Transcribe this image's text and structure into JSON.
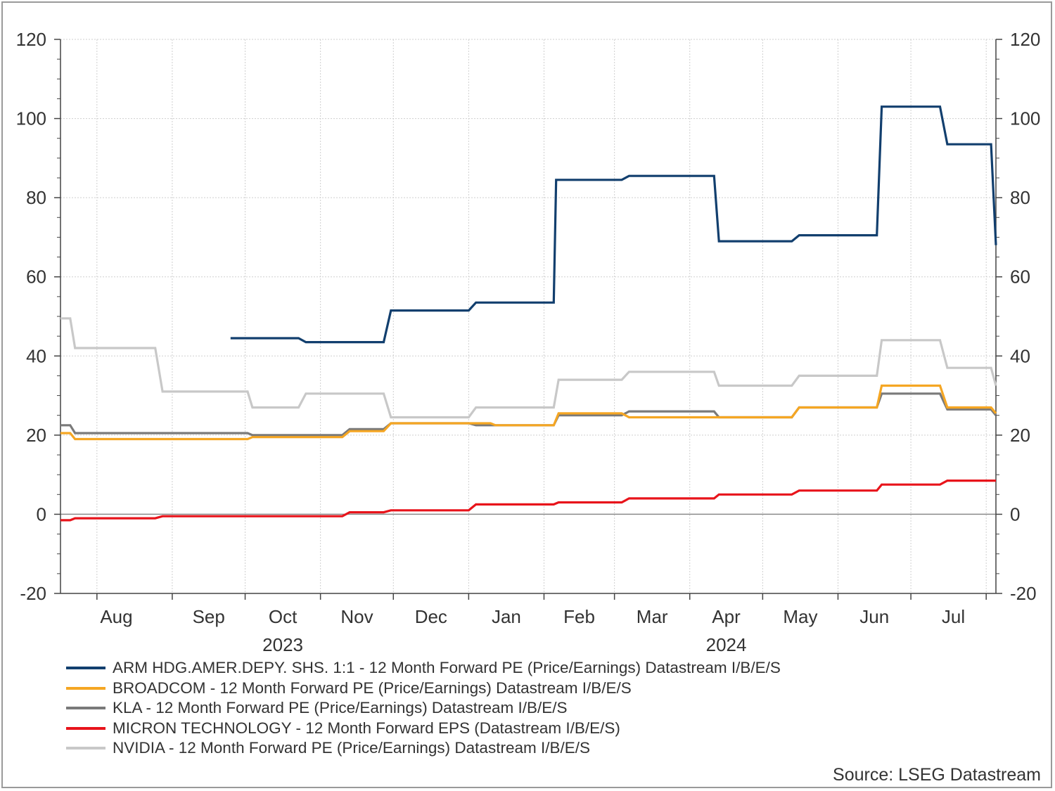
{
  "chart_data": {
    "type": "line",
    "y_axis": {
      "min": -20,
      "max": 120,
      "ticks": [
        -20,
        0,
        20,
        40,
        60,
        80,
        100,
        120
      ],
      "left_and_right": true
    },
    "x_axis": {
      "month_labels": [
        "Aug",
        "Sep",
        "Oct",
        "Nov",
        "Dec",
        "Jan",
        "Feb",
        "Mar",
        "Apr",
        "May",
        "Jun",
        "Jul"
      ],
      "year_labels": [
        {
          "label": "2023",
          "month": "Oct"
        },
        {
          "label": "2024",
          "month": "Apr"
        }
      ],
      "range": [
        "2023-07-17",
        "2024-08-05"
      ]
    },
    "grid": true,
    "legend_position": "bottom",
    "series": [
      {
        "name": "ARM HDG.AMER.DEPY. SHS. 1:1 - 12 Month Forward PE (Price/Earnings) Datastream I/B/E/S",
        "color": "#123f6e",
        "points": [
          [
            "2023-09-25",
            44.5
          ],
          [
            "2023-10-23",
            44.5
          ],
          [
            "2023-10-26",
            43.5
          ],
          [
            "2023-11-27",
            43.5
          ],
          [
            "2023-11-30",
            51.5
          ],
          [
            "2024-01-01",
            51.5
          ],
          [
            "2024-01-04",
            53.5
          ],
          [
            "2024-02-05",
            53.5
          ],
          [
            "2024-02-06",
            84.5
          ],
          [
            "2024-03-04",
            84.5
          ],
          [
            "2024-03-07",
            85.5
          ],
          [
            "2024-04-11",
            85.5
          ],
          [
            "2024-04-13",
            69
          ],
          [
            "2024-05-13",
            69
          ],
          [
            "2024-05-16",
            70.5
          ],
          [
            "2024-06-17",
            70.5
          ],
          [
            "2024-06-19",
            103
          ],
          [
            "2024-07-13",
            103
          ],
          [
            "2024-07-16",
            93.5
          ],
          [
            "2024-08-03",
            93.5
          ],
          [
            "2024-08-05",
            68
          ]
        ]
      },
      {
        "name": "BROADCOM - 12 Month Forward PE (Price/Earnings) Datastream I/B/E/S",
        "color": "#f5a623",
        "points": [
          [
            "2023-07-17",
            20.5
          ],
          [
            "2023-07-21",
            20.5
          ],
          [
            "2023-07-23",
            19
          ],
          [
            "2023-10-02",
            19
          ],
          [
            "2023-10-04",
            19.5
          ],
          [
            "2023-11-10",
            19.5
          ],
          [
            "2023-11-13",
            21
          ],
          [
            "2023-11-27",
            21
          ],
          [
            "2023-11-30",
            23
          ],
          [
            "2024-01-10",
            23
          ],
          [
            "2024-01-12",
            22.5
          ],
          [
            "2024-02-05",
            22.5
          ],
          [
            "2024-02-07",
            25.5
          ],
          [
            "2024-03-04",
            25.5
          ],
          [
            "2024-03-07",
            24.5
          ],
          [
            "2024-05-13",
            24.5
          ],
          [
            "2024-05-16",
            27
          ],
          [
            "2024-06-17",
            27
          ],
          [
            "2024-06-19",
            32.5
          ],
          [
            "2024-07-13",
            32.5
          ],
          [
            "2024-07-16",
            27
          ],
          [
            "2024-08-03",
            27
          ],
          [
            "2024-08-05",
            25.5
          ]
        ]
      },
      {
        "name": "KLA - 12 Month Forward PE (Price/Earnings) Datastream I/B/E/S",
        "color": "#7a7a7a",
        "points": [
          [
            "2023-07-17",
            22.5
          ],
          [
            "2023-07-21",
            22.5
          ],
          [
            "2023-07-23",
            20.5
          ],
          [
            "2023-10-02",
            20.5
          ],
          [
            "2023-10-04",
            20
          ],
          [
            "2023-11-10",
            20
          ],
          [
            "2023-11-13",
            21.5
          ],
          [
            "2023-11-27",
            21.5
          ],
          [
            "2023-11-30",
            23
          ],
          [
            "2024-01-01",
            23
          ],
          [
            "2024-01-04",
            22.5
          ],
          [
            "2024-02-05",
            22.5
          ],
          [
            "2024-02-07",
            25
          ],
          [
            "2024-03-04",
            25
          ],
          [
            "2024-03-07",
            26
          ],
          [
            "2024-04-11",
            26
          ],
          [
            "2024-04-13",
            24.5
          ],
          [
            "2024-05-13",
            24.5
          ],
          [
            "2024-05-16",
            27
          ],
          [
            "2024-06-17",
            27
          ],
          [
            "2024-06-19",
            30.5
          ],
          [
            "2024-07-13",
            30.5
          ],
          [
            "2024-07-16",
            26.5
          ],
          [
            "2024-08-03",
            26.5
          ],
          [
            "2024-08-05",
            25
          ]
        ]
      },
      {
        "name": "MICRON TECHNOLOGY - 12 Month Forward EPS (Datastream I/B/E/S)",
        "color": "#e8141b",
        "points": [
          [
            "2023-07-17",
            -1.5
          ],
          [
            "2023-07-21",
            -1.5
          ],
          [
            "2023-07-23",
            -1
          ],
          [
            "2023-08-25",
            -1
          ],
          [
            "2023-08-28",
            -0.5
          ],
          [
            "2023-11-10",
            -0.5
          ],
          [
            "2023-11-13",
            0.5
          ],
          [
            "2023-11-27",
            0.5
          ],
          [
            "2023-11-30",
            1
          ],
          [
            "2024-01-01",
            1
          ],
          [
            "2024-01-04",
            2.5
          ],
          [
            "2024-02-05",
            2.5
          ],
          [
            "2024-02-07",
            3
          ],
          [
            "2024-03-04",
            3
          ],
          [
            "2024-03-07",
            4
          ],
          [
            "2024-04-11",
            4
          ],
          [
            "2024-04-13",
            5
          ],
          [
            "2024-05-13",
            5
          ],
          [
            "2024-05-16",
            6
          ],
          [
            "2024-06-17",
            6
          ],
          [
            "2024-06-19",
            7.5
          ],
          [
            "2024-07-13",
            7.5
          ],
          [
            "2024-07-16",
            8.5
          ],
          [
            "2024-08-05",
            8.5
          ]
        ]
      },
      {
        "name": "NVIDIA - 12 Month Forward PE (Price/Earnings) Datastream I/B/E/S",
        "color": "#c8c8c8",
        "points": [
          [
            "2023-07-17",
            49.5
          ],
          [
            "2023-07-21",
            49.5
          ],
          [
            "2023-07-23",
            42
          ],
          [
            "2023-08-25",
            42
          ],
          [
            "2023-08-28",
            31
          ],
          [
            "2023-10-02",
            31
          ],
          [
            "2023-10-04",
            27
          ],
          [
            "2023-10-23",
            27
          ],
          [
            "2023-10-26",
            30.5
          ],
          [
            "2023-11-27",
            30.5
          ],
          [
            "2023-11-30",
            24.5
          ],
          [
            "2024-01-01",
            24.5
          ],
          [
            "2024-01-04",
            27
          ],
          [
            "2024-02-05",
            27
          ],
          [
            "2024-02-07",
            34
          ],
          [
            "2024-03-04",
            34
          ],
          [
            "2024-03-07",
            36
          ],
          [
            "2024-04-11",
            36
          ],
          [
            "2024-04-13",
            32.5
          ],
          [
            "2024-05-13",
            32.5
          ],
          [
            "2024-05-16",
            35
          ],
          [
            "2024-06-17",
            35
          ],
          [
            "2024-06-19",
            44
          ],
          [
            "2024-07-13",
            44
          ],
          [
            "2024-07-16",
            37
          ],
          [
            "2024-08-03",
            37
          ],
          [
            "2024-08-05",
            32.5
          ]
        ]
      }
    ],
    "source": "Source: LSEG Datastream"
  }
}
